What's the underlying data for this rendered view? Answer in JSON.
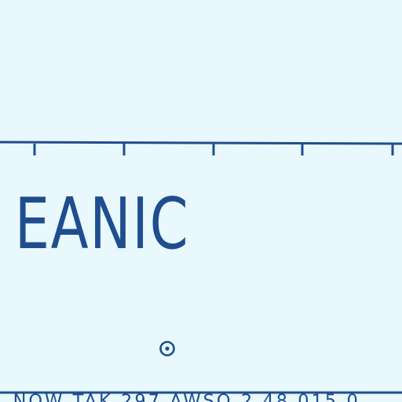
{
  "ocean_label": "EANIC",
  "bottom_caption": "...NOW TAK 297 AWSO 2 48 015 0",
  "marker": {
    "type": "circle-dot-symbol"
  },
  "colors": {
    "background": "#e8f8fc",
    "ink": "#1f4d8f"
  },
  "graticule": {
    "tick_count": 5
  }
}
